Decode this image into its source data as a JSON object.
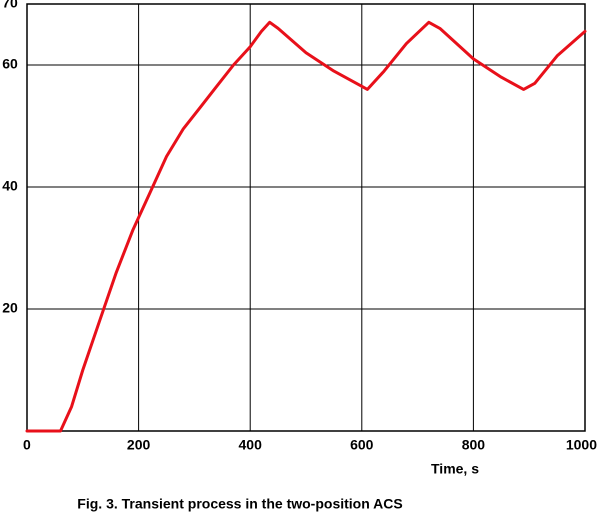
{
  "chart_data": {
    "type": "line",
    "title": "Fig. 3. Transient process in the two-position ACS",
    "xlabel": "Time,  s",
    "x": [
      0,
      60,
      80,
      100,
      130,
      160,
      190,
      220,
      250,
      280,
      310,
      340,
      370,
      400,
      420,
      435,
      450,
      500,
      550,
      600,
      610,
      640,
      680,
      720,
      740,
      800,
      850,
      890,
      910,
      950,
      1000
    ],
    "values": [
      0,
      0,
      4,
      10,
      18,
      26,
      33,
      39,
      45,
      49.5,
      53,
      56.5,
      60,
      63,
      65.5,
      67,
      66,
      62,
      59,
      56.5,
      56,
      59,
      63.5,
      67,
      66,
      61,
      58,
      56,
      57,
      61.5,
      65.5
    ],
    "color": "#e8101a",
    "xlim": [
      0,
      1000
    ],
    "ylim": [
      0,
      70
    ],
    "xticks": [
      0,
      200,
      400,
      600,
      800,
      1000
    ],
    "yticks": [
      20,
      40,
      60,
      70
    ],
    "grid": true
  }
}
